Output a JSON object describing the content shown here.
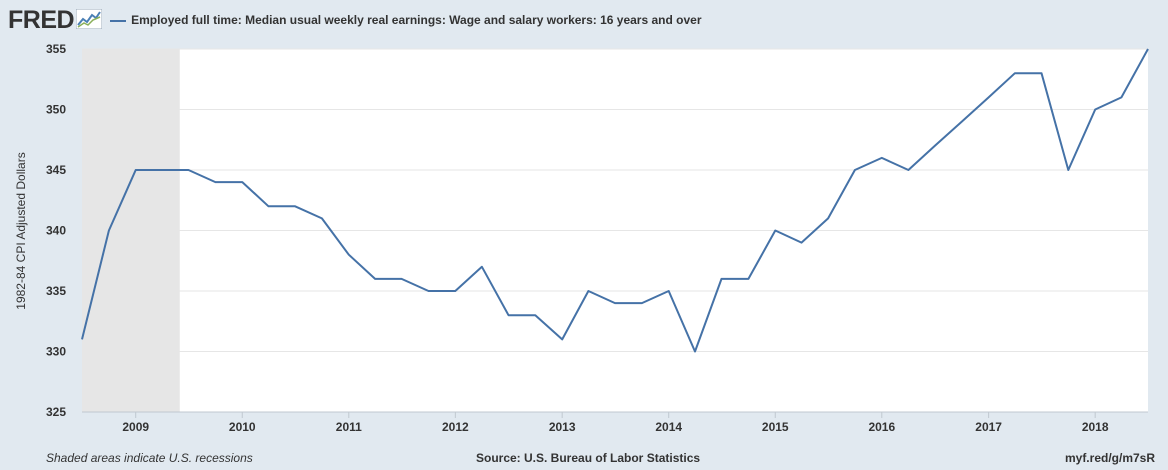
{
  "header": {
    "logo_text": "FRED",
    "series_title": "Employed full time: Median usual weekly real earnings: Wage and salary workers: 16 years and over"
  },
  "footer": {
    "recession_note": "Shaded areas indicate U.S. recessions",
    "source": "Source: U.S. Bureau of Labor Statistics",
    "link": "myf.red/g/m7sR"
  },
  "colors": {
    "line": "#4572a7",
    "recession": "#e6e6e6",
    "background": "#e1e9f0",
    "plot": "#ffffff"
  },
  "chart_data": {
    "type": "line",
    "title": "",
    "xlabel": "",
    "ylabel": "1982-84 CPI Adjusted Dollars",
    "ylim": [
      325,
      355
    ],
    "xlim": [
      "2008-07-01",
      "2018-07-01"
    ],
    "y_ticks": [
      325,
      330,
      335,
      340,
      345,
      350,
      355
    ],
    "x_ticks": [
      "2009",
      "2010",
      "2011",
      "2012",
      "2013",
      "2014",
      "2015",
      "2016",
      "2017",
      "2018"
    ],
    "grid": true,
    "recession": {
      "start": "2008-07-01",
      "end": "2009-06-01"
    },
    "series": [
      {
        "name": "Employed full time: Median usual weekly real earnings: Wage and salary workers: 16 years and over",
        "x": [
          "2008-07-01",
          "2008-10-01",
          "2009-01-01",
          "2009-04-01",
          "2009-07-01",
          "2009-10-01",
          "2010-01-01",
          "2010-04-01",
          "2010-07-01",
          "2010-10-01",
          "2011-01-01",
          "2011-04-01",
          "2011-07-01",
          "2011-10-01",
          "2012-01-01",
          "2012-04-01",
          "2012-07-01",
          "2012-10-01",
          "2013-01-01",
          "2013-04-01",
          "2013-07-01",
          "2013-10-01",
          "2014-01-01",
          "2014-04-01",
          "2014-07-01",
          "2014-10-01",
          "2015-01-01",
          "2015-04-01",
          "2015-07-01",
          "2015-10-01",
          "2016-01-01",
          "2016-04-01",
          "2016-07-01",
          "2016-10-01",
          "2017-01-01",
          "2017-04-01",
          "2017-07-01",
          "2017-10-01",
          "2018-01-01",
          "2018-04-01",
          "2018-07-01"
        ],
        "values": [
          331,
          340,
          345,
          345,
          345,
          344,
          344,
          342,
          342,
          341,
          338,
          336,
          336,
          335,
          335,
          337,
          333,
          333,
          331,
          335,
          334,
          334,
          335,
          330,
          336,
          336,
          340,
          339,
          341,
          345,
          346,
          345,
          347,
          349,
          351,
          353,
          353,
          345,
          350,
          351,
          355
        ]
      }
    ]
  }
}
